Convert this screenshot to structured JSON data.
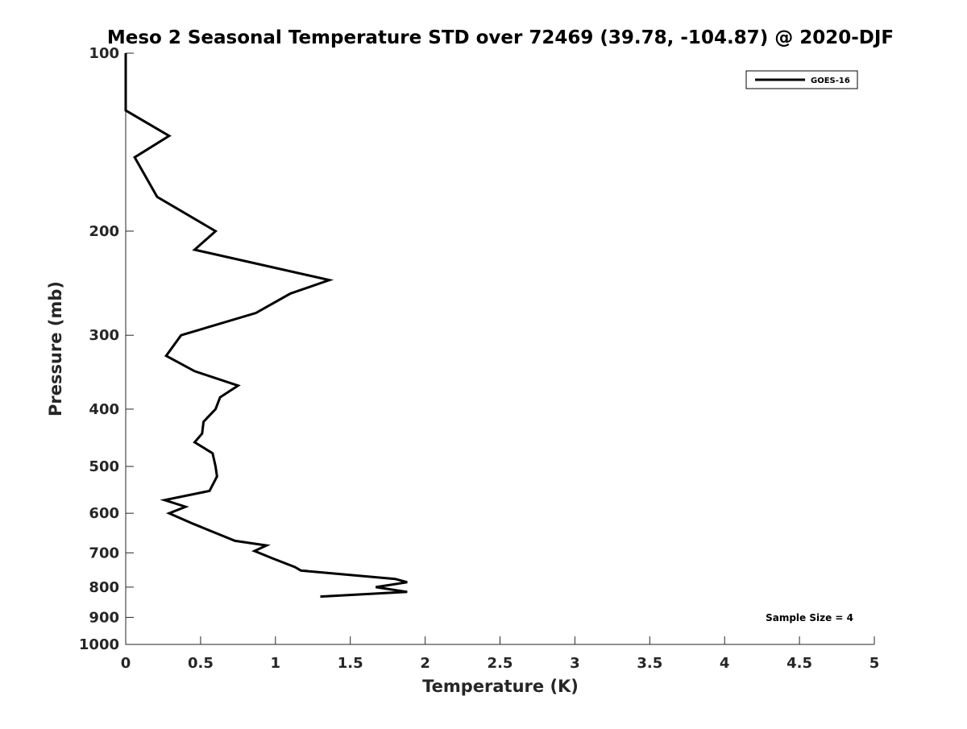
{
  "chart_data": {
    "type": "line",
    "title": "Meso 2 Seasonal Temperature STD over 72469 (39.78, -104.87) @ 2020-DJF",
    "xlabel": "Temperature (K)",
    "ylabel": "Pressure (mb)",
    "xlim": [
      0,
      5
    ],
    "ylim": [
      100,
      1000
    ],
    "y_scale": "log",
    "y_reversed": true,
    "x_ticks": [
      0,
      0.5,
      1,
      1.5,
      2,
      2.5,
      3,
      3.5,
      4,
      4.5,
      5
    ],
    "x_tick_labels": [
      "0",
      "0.5",
      "1",
      "1.5",
      "2",
      "2.5",
      "3",
      "3.5",
      "4",
      "4.5",
      "5"
    ],
    "y_ticks": [
      100,
      200,
      300,
      400,
      500,
      600,
      700,
      800,
      900,
      1000
    ],
    "y_tick_labels": [
      "100",
      "200",
      "300",
      "400",
      "500",
      "600",
      "700",
      "800",
      "900",
      "1000"
    ],
    "grid": false,
    "legend_position": "top-right",
    "series": [
      {
        "name": "GOES-16",
        "color": "#000000",
        "points": [
          {
            "x": 0.0,
            "y": 100
          },
          {
            "x": 0.0,
            "y": 125
          },
          {
            "x": 0.29,
            "y": 138
          },
          {
            "x": 0.06,
            "y": 150
          },
          {
            "x": 0.21,
            "y": 175
          },
          {
            "x": 0.6,
            "y": 200
          },
          {
            "x": 0.46,
            "y": 215
          },
          {
            "x": 1.36,
            "y": 242
          },
          {
            "x": 1.1,
            "y": 255
          },
          {
            "x": 0.87,
            "y": 275
          },
          {
            "x": 0.37,
            "y": 300
          },
          {
            "x": 0.27,
            "y": 325
          },
          {
            "x": 0.46,
            "y": 345
          },
          {
            "x": 0.75,
            "y": 365
          },
          {
            "x": 0.63,
            "y": 382
          },
          {
            "x": 0.6,
            "y": 400
          },
          {
            "x": 0.52,
            "y": 420
          },
          {
            "x": 0.51,
            "y": 440
          },
          {
            "x": 0.46,
            "y": 455
          },
          {
            "x": 0.58,
            "y": 475
          },
          {
            "x": 0.6,
            "y": 500
          },
          {
            "x": 0.61,
            "y": 520
          },
          {
            "x": 0.56,
            "y": 550
          },
          {
            "x": 0.26,
            "y": 570
          },
          {
            "x": 0.4,
            "y": 585
          },
          {
            "x": 0.29,
            "y": 600
          },
          {
            "x": 0.45,
            "y": 625
          },
          {
            "x": 0.73,
            "y": 668
          },
          {
            "x": 0.94,
            "y": 680
          },
          {
            "x": 0.86,
            "y": 695
          },
          {
            "x": 0.98,
            "y": 715
          },
          {
            "x": 1.13,
            "y": 740
          },
          {
            "x": 1.17,
            "y": 750
          },
          {
            "x": 1.8,
            "y": 775
          },
          {
            "x": 1.88,
            "y": 785
          },
          {
            "x": 1.67,
            "y": 800
          },
          {
            "x": 1.88,
            "y": 815
          },
          {
            "x": 1.3,
            "y": 830
          }
        ]
      }
    ],
    "legend_label": "GOES-16",
    "annotation": "Sample Size = 4"
  }
}
